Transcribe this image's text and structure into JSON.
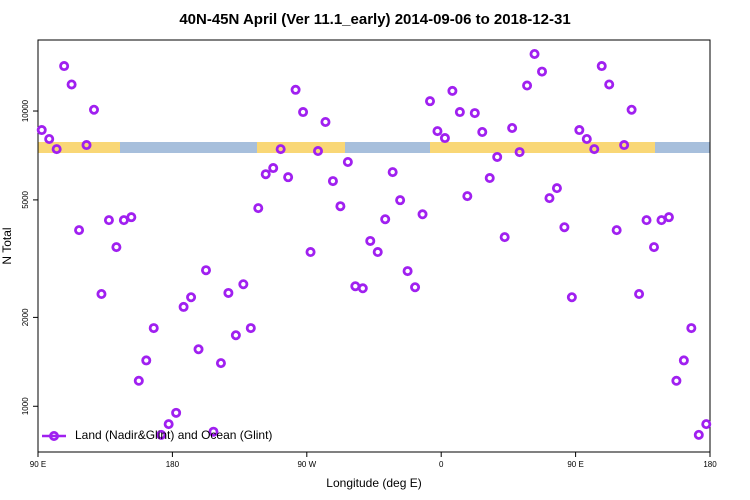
{
  "chart_data": {
    "type": "scatter",
    "title": "40N-45N April (Ver 11.1_early)   2014-09-06 to 2018-12-31",
    "x_label": "Longitude (deg E)",
    "y_label": "N Total",
    "xlim": [
      90,
      540
    ],
    "ylim": [
      700,
      17400
    ],
    "log_y": true,
    "xticks": [
      {
        "value": 90,
        "label": "90 E"
      },
      {
        "value": 180,
        "label": "180"
      },
      {
        "value": 270,
        "label": "90 W"
      },
      {
        "value": 360,
        "label": "0"
      },
      {
        "value": 450,
        "label": "90 E"
      },
      {
        "value": 540,
        "label": "180"
      }
    ],
    "yticks": [
      1000,
      2000,
      5000,
      10000
    ],
    "legend": "bottom-left",
    "series": [
      {
        "name": "Land (Nadir&Glint) and Ocean (Glint)",
        "color": "#a020f0",
        "x": [
          92.5,
          97.5,
          102.5,
          107.5,
          112.5,
          117.5,
          122.5,
          127.5,
          132.5,
          137.5,
          142.5,
          147.5,
          152.5,
          157.5,
          162.5,
          167.5,
          172.5,
          177.5,
          182.5,
          187.5,
          192.5,
          197.5,
          202.5,
          207.5,
          212.5,
          217.5,
          222.5,
          227.5,
          232.5,
          237.5,
          242.5,
          247.5,
          252.5,
          257.5,
          262.5,
          267.5,
          272.5,
          277.5,
          282.5,
          287.5,
          292.5,
          297.5,
          302.5,
          307.5,
          312.5,
          317.5,
          322.5,
          327.5,
          332.5,
          337.5,
          342.5,
          347.5,
          352.5,
          357.5,
          362.5,
          367.5,
          372.5,
          377.5,
          382.5,
          387.5,
          392.5,
          397.5,
          402.5,
          407.5,
          412.5,
          417.5,
          422.5,
          427.5,
          432.5,
          437.5,
          442.5,
          447.5,
          452.5,
          457.5,
          462.5,
          467.5,
          472.5,
          477.5,
          482.5,
          487.5,
          492.5,
          497.5,
          502.5,
          507.5,
          512.5,
          517.5,
          522.5,
          527.5,
          532.5,
          537.5
        ],
        "values": [
          8620,
          8040,
          7430,
          14200,
          12300,
          3950,
          7670,
          10100,
          2400,
          4270,
          3460,
          4270,
          4370,
          1220,
          1430,
          1840,
          800,
          870,
          950,
          2170,
          2340,
          1560,
          2890,
          820,
          1400,
          2420,
          1740,
          2590,
          1840,
          4690,
          6110,
          6410,
          7430,
          5970,
          11800,
          9920,
          3330,
          7320,
          9180,
          5790,
          4760,
          6720,
          2550,
          2510,
          3630,
          3330,
          4300,
          6210,
          4990,
          2870,
          2530,
          4470,
          10800,
          8550,
          8100,
          11700,
          9920,
          5150,
          9840,
          8490,
          5930,
          6990,
          3740,
          8760,
          7260,
          12200,
          15600,
          13600,
          5070,
          5480,
          4040,
          2340,
          8620,
          8040,
          7430,
          14200,
          12300,
          3950,
          7670,
          10100,
          2400,
          4270,
          3460,
          4270,
          4370,
          1220,
          1430,
          1840,
          800,
          870
        ]
      }
    ]
  }
}
